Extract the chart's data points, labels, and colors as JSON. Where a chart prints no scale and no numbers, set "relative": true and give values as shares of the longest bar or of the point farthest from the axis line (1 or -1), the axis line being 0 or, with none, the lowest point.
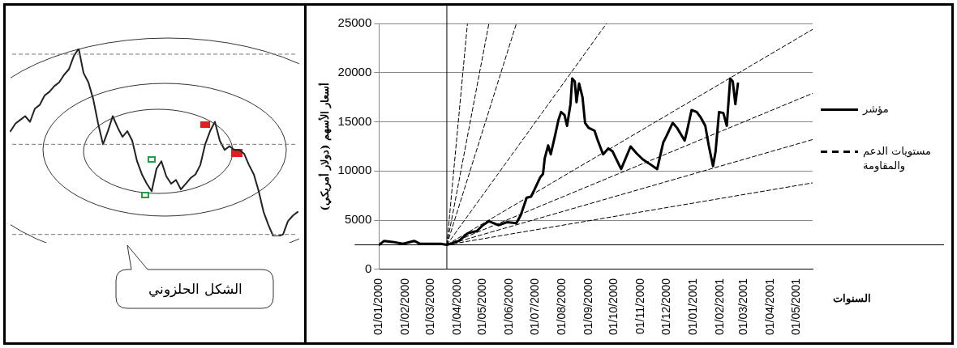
{
  "chart_data": [
    {
      "type": "line",
      "relative": true,
      "marker": "none",
      "annotations": [
        "الشكل الحلزوني"
      ],
      "categories": [
        null,
        null,
        null,
        null,
        null,
        null,
        null,
        null,
        null,
        null,
        null,
        null,
        null,
        null,
        null,
        null,
        null,
        null,
        null,
        null,
        null,
        null,
        null,
        null,
        null,
        null,
        null,
        null,
        null,
        null,
        null,
        null,
        null,
        null,
        null,
        null,
        null,
        null,
        null,
        null,
        null,
        null,
        null,
        null,
        null,
        null,
        null,
        null,
        null,
        null,
        null,
        null,
        null,
        null,
        null,
        null,
        null,
        null,
        null,
        null
      ],
      "ref_lines": [
        {
          "axis": "y",
          "value": 0.97,
          "color": "#777777",
          "line_style": "dashed"
        },
        {
          "axis": "y",
          "value": 0.49,
          "color": "#777777",
          "line_style": "dashed"
        },
        {
          "axis": "y",
          "value": 0.01,
          "color": "#777777",
          "line_style": "dashed"
        }
      ],
      "series": [
        {
          "color": "#222222",
          "values": [
            0.56,
            0.6,
            0.62,
            0.64,
            0.61,
            0.68,
            0.7,
            0.75,
            0.77,
            0.8,
            0.82,
            0.86,
            0.89,
            0.96,
            1,
            0.87,
            0.82,
            0.73,
            0.6,
            0.49,
            0.56,
            0.64,
            0.58,
            0.53,
            0.56,
            0.51,
            0.4,
            0.33,
            0.28,
            0.24,
            0.36,
            0.4,
            0.32,
            0.28,
            0.3,
            0.25,
            0.28,
            0.31,
            0.33,
            0.38,
            0.49,
            0.56,
            0.61,
            0.51,
            0.46,
            0.48,
            0.46,
            0.46,
            0.44,
            0.38,
            0.33,
            0.24,
            0.13,
            0.06,
            0,
            0,
            0.01,
            0.08,
            0.11,
            0.13
          ]
        }
      ]
    },
    {
      "type": "line",
      "ylabel": "أسعار الأسهم (دولار أمريكي)",
      "xlabel": "السنوات",
      "legend": "right",
      "grid": "y",
      "marker": "none",
      "xlim": [
        "2000-01-01",
        "2001-05-20"
      ],
      "ylim": [
        0,
        25000
      ],
      "yticks": [
        0,
        5000,
        10000,
        15000,
        20000,
        25000
      ],
      "xticks": [
        {
          "value": "2000-01-01",
          "label": "01/01/2000"
        },
        {
          "value": "2000-02-01",
          "label": "01/02/2000"
        },
        {
          "value": "2000-03-01",
          "label": "01/03/2000"
        },
        {
          "value": "2000-04-01",
          "label": "01/04/2000"
        },
        {
          "value": "2000-05-01",
          "label": "01/05/2000"
        },
        {
          "value": "2000-06-01",
          "label": "01/06/2000"
        },
        {
          "value": "2000-07-01",
          "label": "01/07/2000"
        },
        {
          "value": "2000-08-01",
          "label": "01/08/2000"
        },
        {
          "value": "2000-09-01",
          "label": "01/09/2000"
        },
        {
          "value": "2000-10-01",
          "label": "01/10/2000"
        },
        {
          "value": "2000-11-01",
          "label": "01/11/2000"
        },
        {
          "value": "2000-12-01",
          "label": "01/12/2000"
        },
        {
          "value": "2001-01-01",
          "label": "01/01/2001"
        },
        {
          "value": "2001-02-01",
          "label": "01/02/2001"
        },
        {
          "value": "2001-03-01",
          "label": "01/03/2001"
        },
        {
          "value": "2001-04-01",
          "label": "01/04/2001"
        },
        {
          "value": "2001-05-01",
          "label": "01/05/2001"
        }
      ],
      "ref_lines": [
        {
          "axis": "x",
          "value": "2000-03-20",
          "color": "#000000"
        },
        {
          "axis": "y",
          "value": 2500,
          "color": "#000000"
        }
      ],
      "series": [
        {
          "name": "مؤشر",
          "type": "line",
          "color": "#000000",
          "line_style": "solid",
          "x": [
            "2000-01-01",
            "2000-01-07",
            "2000-01-17",
            "2000-01-29",
            "2000-02-11",
            "2000-02-18",
            "2000-03-13",
            "2000-03-20",
            "2000-03-24",
            "2000-04-03",
            "2000-04-14",
            "2000-04-24",
            "2000-05-01",
            "2000-05-08",
            "2000-05-19",
            "2000-05-29",
            "2000-06-09",
            "2000-06-14",
            "2000-06-21",
            "2000-06-26",
            "2000-06-30",
            "2000-07-07",
            "2000-07-10",
            "2000-07-12",
            "2000-07-16",
            "2000-07-19",
            "2000-07-24",
            "2000-07-28",
            "2000-07-31",
            "2000-08-04",
            "2000-08-07",
            "2000-08-11",
            "2000-08-13",
            "2000-08-16",
            "2000-08-18",
            "2000-08-21",
            "2000-08-25",
            "2000-08-28",
            "2000-09-01",
            "2000-09-08",
            "2000-09-11",
            "2000-09-18",
            "2000-09-24",
            "2000-09-29",
            "2000-10-09",
            "2000-10-20",
            "2000-10-27",
            "2000-11-03",
            "2000-11-10",
            "2000-11-20",
            "2000-11-27",
            "2000-12-01",
            "2000-12-08",
            "2000-12-13",
            "2000-12-22",
            "2000-12-25",
            "2000-12-30",
            "2001-01-05",
            "2001-01-10",
            "2001-01-15",
            "2001-01-19",
            "2001-01-24",
            "2001-01-27",
            "2001-01-31",
            "2001-02-05",
            "2001-02-09",
            "2001-02-13",
            "2001-02-16",
            "2001-02-19",
            "2001-02-22"
          ],
          "values": [
            2500,
            2900,
            2800,
            2600,
            2900,
            2600,
            2600,
            2500,
            2600,
            2900,
            3700,
            3900,
            4500,
            4900,
            4500,
            4800,
            4700,
            5500,
            7300,
            7400,
            8100,
            9400,
            9700,
            11300,
            12600,
            11700,
            13600,
            15200,
            16000,
            15700,
            14600,
            16800,
            19400,
            19100,
            17000,
            18900,
            17500,
            14900,
            14400,
            14100,
            13300,
            11700,
            12300,
            12000,
            10200,
            12500,
            11800,
            11200,
            10800,
            10200,
            12900,
            13600,
            14900,
            14400,
            13100,
            14200,
            16200,
            16000,
            15400,
            14600,
            12600,
            10500,
            12000,
            16000,
            15900,
            14600,
            19400,
            19100,
            16800,
            18900
          ]
        },
        {
          "name": "مستويات الدعم والمقاومة",
          "type": "line",
          "color": "#000000",
          "line_style": "dashed",
          "x": [
            "2000-03-20",
            "2000-04-13"
          ],
          "values": [
            2500,
            25000
          ]
        },
        {
          "type": "line",
          "color": "#000000",
          "line_style": "dashed",
          "x": [
            "2000-03-20",
            "2000-05-08"
          ],
          "values": [
            2500,
            25000
          ]
        },
        {
          "type": "line",
          "color": "#000000",
          "line_style": "dashed",
          "x": [
            "2000-03-20",
            "2000-06-09"
          ],
          "values": [
            2500,
            25000
          ]
        },
        {
          "type": "line",
          "color": "#000000",
          "line_style": "dashed",
          "x": [
            "2000-03-20",
            "2000-09-22"
          ],
          "values": [
            2500,
            25000
          ]
        },
        {
          "type": "line",
          "color": "#000000",
          "line_style": "dashed",
          "x": [
            "2000-03-20",
            "2001-05-20"
          ],
          "values": [
            2500,
            24400
          ]
        },
        {
          "type": "line",
          "color": "#000000",
          "line_style": "dashed",
          "x": [
            "2000-03-20",
            "2001-05-20"
          ],
          "values": [
            2500,
            17900
          ]
        },
        {
          "type": "line",
          "color": "#000000",
          "line_style": "dashed",
          "x": [
            "2000-03-20",
            "2001-05-20"
          ],
          "values": [
            2500,
            13200
          ]
        },
        {
          "type": "line",
          "color": "#000000",
          "line_style": "dashed",
          "x": [
            "2000-03-20",
            "2001-05-20"
          ],
          "values": [
            2500,
            8800
          ]
        }
      ]
    }
  ]
}
